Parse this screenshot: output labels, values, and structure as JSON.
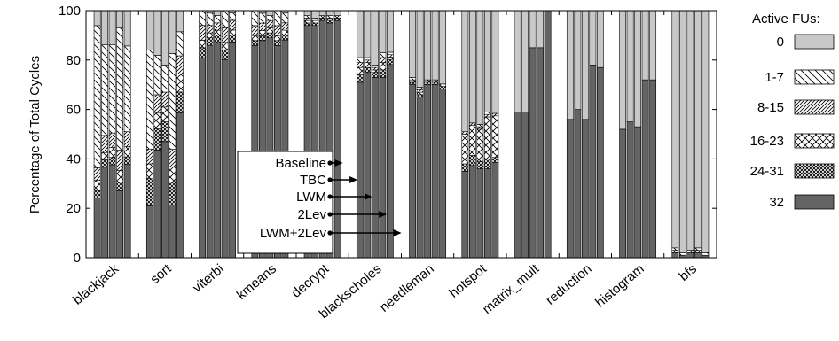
{
  "chart_data": {
    "type": "bar",
    "stacked": true,
    "ylabel": "Percentage of Total Cycles",
    "ylim": [
      0,
      100
    ],
    "yticks": [
      "0",
      "20",
      "40",
      "60",
      "80",
      "100"
    ],
    "categories": [
      "blackjack",
      "sort",
      "viterbi",
      "kmeans",
      "decrypt",
      "blackscholes",
      "needleman",
      "hotspot",
      "matrix_mult",
      "reduction",
      "histogram",
      "bfs"
    ],
    "schemes": [
      "Baseline",
      "TBC",
      "LWM",
      "2Lev",
      "LWM+2Lev"
    ],
    "legend_title": "Active FUs:",
    "legend_position": "right",
    "series": [
      {
        "name": "0",
        "color": "#c8c8c8",
        "pattern": "solid-light",
        "values": [
          [
            6,
            14,
            14,
            6,
            14
          ],
          [
            16,
            17,
            22,
            17,
            7
          ],
          [
            0,
            1,
            2,
            0,
            1
          ],
          [
            0,
            1,
            2,
            0,
            1
          ],
          [
            2,
            3,
            2,
            2,
            2
          ],
          [
            19,
            19,
            22,
            17,
            17
          ],
          [
            27,
            31,
            28,
            28,
            30
          ],
          [
            49,
            45,
            46,
            41,
            42
          ],
          [
            41,
            41,
            15,
            15,
            0
          ],
          [
            44,
            40,
            44,
            22,
            23
          ],
          [
            48,
            45,
            47,
            28,
            28
          ],
          [
            96,
            98,
            97,
            96,
            98
          ]
        ]
      },
      {
        "name": "1-7",
        "color": "#ffffff",
        "pattern": "diagonal-back",
        "values": [
          [
            57,
            37,
            36,
            42,
            34
          ],
          [
            40,
            15,
            11,
            38,
            8
          ],
          [
            6,
            5,
            3,
            7,
            3
          ],
          [
            6,
            4,
            2,
            6,
            4
          ],
          [
            1,
            1,
            0,
            1,
            0
          ],
          [
            2,
            1,
            1,
            2,
            1
          ],
          [
            1,
            1,
            0,
            0,
            0
          ],
          [
            0,
            0,
            1,
            1,
            0
          ],
          [
            0,
            0,
            0,
            0,
            0
          ],
          [
            0,
            0,
            0,
            0,
            0
          ],
          [
            0,
            0,
            0,
            0,
            0
          ],
          [
            1,
            1,
            1,
            1,
            1
          ]
        ]
      },
      {
        "name": "8-15",
        "color": "#ffffff",
        "pattern": "diagonal-dense",
        "values": [
          [
            5,
            7,
            6,
            7,
            6
          ],
          [
            6,
            7,
            6,
            7,
            6
          ],
          [
            6,
            3,
            3,
            6,
            4
          ],
          [
            4,
            3,
            3,
            4,
            3
          ],
          [
            1,
            0,
            0,
            0,
            0
          ],
          [
            2,
            1,
            1,
            2,
            1
          ],
          [
            0,
            1,
            0,
            0,
            0
          ],
          [
            1,
            1,
            1,
            1,
            1
          ],
          [
            0,
            0,
            0,
            0,
            0
          ],
          [
            0,
            0,
            0,
            0,
            0
          ],
          [
            0,
            0,
            0,
            0,
            0
          ],
          [
            1,
            0,
            0,
            1,
            0
          ]
        ]
      },
      {
        "name": "16-23",
        "color": "#ffffff",
        "pattern": "crosshatch",
        "values": [
          [
            4,
            3,
            4,
            4,
            4
          ],
          [
            6,
            6,
            6,
            6,
            6
          ],
          [
            3,
            2,
            2,
            3,
            2
          ],
          [
            2,
            2,
            2,
            2,
            2
          ],
          [
            1,
            1,
            1,
            1,
            1
          ],
          [
            3,
            2,
            1,
            3,
            1
          ],
          [
            1,
            1,
            1,
            1,
            1
          ],
          [
            12,
            12,
            13,
            17,
            17
          ],
          [
            0,
            0,
            0,
            0,
            0
          ],
          [
            0,
            0,
            0,
            0,
            0
          ],
          [
            0,
            0,
            0,
            0,
            0
          ],
          [
            0,
            0,
            0,
            0,
            0
          ]
        ]
      },
      {
        "name": "24-31",
        "color": "#ffffff",
        "pattern": "crosshatch-dense",
        "values": [
          [
            3,
            3,
            3,
            3,
            3
          ],
          [
            11,
            8,
            8,
            9,
            7
          ],
          [
            4,
            3,
            3,
            4,
            3
          ],
          [
            2,
            2,
            2,
            2,
            2
          ],
          [
            1,
            1,
            1,
            1,
            1
          ],
          [
            3,
            2,
            2,
            3,
            2
          ],
          [
            1,
            1,
            1,
            1,
            1
          ],
          [
            3,
            4,
            3,
            4,
            2
          ],
          [
            0,
            0,
            0,
            0,
            0
          ],
          [
            0,
            0,
            0,
            0,
            0
          ],
          [
            0,
            0,
            0,
            0,
            0
          ],
          [
            0,
            0,
            0,
            0,
            0
          ]
        ]
      },
      {
        "name": "32",
        "color": "#646464",
        "pattern": "solid-dark",
        "values": [
          [
            24,
            37,
            38,
            23,
            37
          ],
          [
            21,
            41,
            47,
            21,
            48
          ],
          [
            81,
            86,
            88,
            81,
            89
          ],
          [
            85,
            87,
            89,
            85,
            89
          ],
          [
            94,
            94,
            96,
            95,
            96
          ],
          [
            71,
            75,
            73,
            73,
            79
          ],
          [
            70,
            65,
            70,
            70,
            69
          ],
          [
            35,
            37,
            36,
            36,
            39
          ],
          [
            59,
            59,
            85,
            85,
            100
          ],
          [
            56,
            60,
            56,
            78,
            77
          ],
          [
            52,
            55,
            53,
            72,
            72
          ],
          [
            2,
            1,
            2,
            2,
            1
          ]
        ]
      }
    ]
  }
}
